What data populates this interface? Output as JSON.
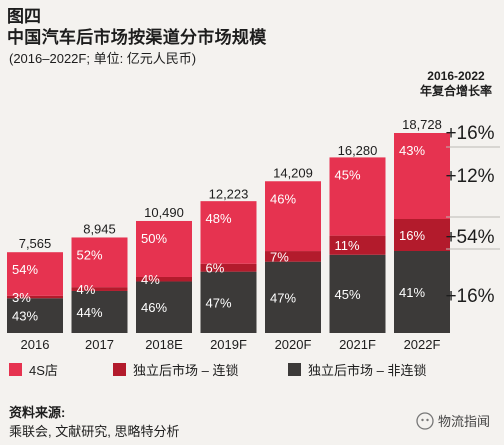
{
  "figure_label": "图四",
  "watermark": "物流指闻",
  "source": {
    "title": "资料来源:",
    "text": "乘联会, 文献研究, 思略特分析"
  },
  "chart_data": {
    "type": "bar",
    "stacked": true,
    "title": "中国汽车后市场按渠道分市场规模",
    "subtitle": "(2016–2022F; 单位: 亿元人民币)",
    "categories": [
      "2016",
      "2017",
      "2018E",
      "2019F",
      "2020F",
      "2021F",
      "2022F"
    ],
    "totals": [
      7565,
      8945,
      10490,
      12223,
      14209,
      16280,
      18728
    ],
    "total_labels": [
      "7,565",
      "8,945",
      "10,490",
      "12,223",
      "14,209",
      "16,280",
      "18,728"
    ],
    "series": [
      {
        "name": "独立后市场 – 非连锁",
        "color": "#3c3a39",
        "shares": [
          43,
          44,
          46,
          47,
          47,
          45,
          41
        ],
        "labels": [
          "43%",
          "44%",
          "46%",
          "47%",
          "47%",
          "45%",
          "41%"
        ]
      },
      {
        "name": "独立后市场 – 连锁",
        "color": "#b31b2c",
        "shares": [
          3,
          4,
          4,
          6,
          7,
          11,
          16
        ],
        "labels": [
          "3%",
          "4%",
          "4%",
          "6%",
          "7%",
          "11%",
          "16%"
        ]
      },
      {
        "name": "4S店",
        "color": "#e63350",
        "shares": [
          54,
          52,
          50,
          48,
          46,
          45,
          43
        ],
        "labels": [
          "54%",
          "52%",
          "50%",
          "48%",
          "46%",
          "45%",
          "43%"
        ]
      }
    ],
    "legend_order": [
      2,
      1,
      0
    ],
    "legend_position": "bottom",
    "cagr": {
      "header_line1": "2016-2022",
      "header_line2": "年复合增长率",
      "total": "+16%",
      "4S店": "+12%",
      "独立后市场 – 连锁": "+54%",
      "独立后市场 – 非连锁": "+16%"
    },
    "ylim": [
      0,
      20000
    ],
    "grid": false,
    "xlabel": "",
    "ylabel": ""
  }
}
